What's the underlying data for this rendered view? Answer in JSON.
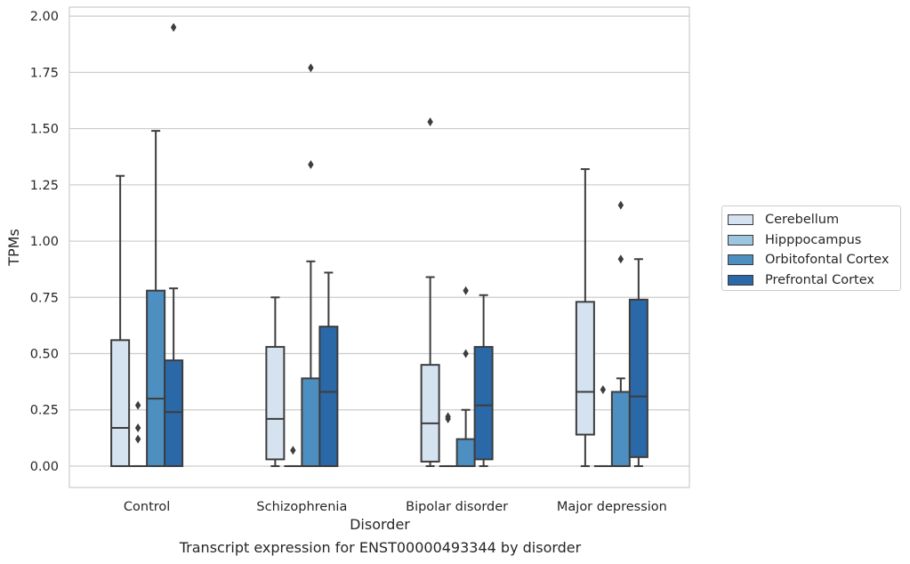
{
  "chart_data": {
    "type": "box",
    "title": "",
    "xlabel": "Disorder",
    "ylabel": "TPMs",
    "ylim": [
      -0.095,
      2.04
    ],
    "yticks": [
      0.0,
      0.25,
      0.5,
      0.75,
      1.0,
      1.25,
      1.5,
      1.75,
      2.0
    ],
    "ytick_labels": [
      "0.00",
      "0.25",
      "0.50",
      "0.75",
      "1.00",
      "1.25",
      "1.50",
      "1.75",
      "2.00"
    ],
    "grid": "horizontal",
    "legend_position": "right",
    "categories": [
      "Control",
      "Schizophrenia",
      "Bipolar disorder",
      "Major depression"
    ],
    "series": [
      {
        "name": "Cerebellum",
        "color": "#d5e3f1",
        "boxes": [
          {
            "q1": 0.0,
            "median": 0.17,
            "q3": 0.56,
            "whisker_low": 0.0,
            "whisker_high": 1.29,
            "outliers": []
          },
          {
            "q1": 0.03,
            "median": 0.21,
            "q3": 0.53,
            "whisker_low": 0.0,
            "whisker_high": 0.75,
            "outliers": []
          },
          {
            "q1": 0.02,
            "median": 0.19,
            "q3": 0.45,
            "whisker_low": 0.0,
            "whisker_high": 0.84,
            "outliers": [
              1.53
            ]
          },
          {
            "q1": 0.14,
            "median": 0.33,
            "q3": 0.73,
            "whisker_low": 0.0,
            "whisker_high": 1.32,
            "outliers": []
          }
        ]
      },
      {
        "name": "Hipppocampus",
        "color": "#9cc5e0",
        "boxes": [
          {
            "q1": 0.0,
            "median": 0.0,
            "q3": 0.0,
            "whisker_low": 0.0,
            "whisker_high": 0.0,
            "outliers": [
              0.12,
              0.17,
              0.27
            ]
          },
          {
            "q1": 0.0,
            "median": 0.0,
            "q3": 0.0,
            "whisker_low": 0.0,
            "whisker_high": 0.0,
            "outliers": [
              0.07
            ]
          },
          {
            "q1": 0.0,
            "median": 0.0,
            "q3": 0.0,
            "whisker_low": 0.0,
            "whisker_high": 0.0,
            "outliers": [
              0.21,
              0.22
            ]
          },
          {
            "q1": 0.0,
            "median": 0.0,
            "q3": 0.0,
            "whisker_low": 0.0,
            "whisker_high": 0.0,
            "outliers": [
              0.34
            ]
          }
        ]
      },
      {
        "name": "Orbitofontal Cortex",
        "color": "#4c8fc0",
        "boxes": [
          {
            "q1": 0.0,
            "median": 0.3,
            "q3": 0.78,
            "whisker_low": 0.0,
            "whisker_high": 1.49,
            "outliers": []
          },
          {
            "q1": 0.0,
            "median": 0.0,
            "q3": 0.39,
            "whisker_low": 0.0,
            "whisker_high": 0.91,
            "outliers": [
              1.34,
              1.77
            ]
          },
          {
            "q1": 0.0,
            "median": 0.0,
            "q3": 0.12,
            "whisker_low": 0.0,
            "whisker_high": 0.25,
            "outliers": [
              0.5,
              0.78
            ]
          },
          {
            "q1": 0.0,
            "median": 0.0,
            "q3": 0.33,
            "whisker_low": 0.0,
            "whisker_high": 0.39,
            "outliers": [
              0.92,
              1.16
            ]
          }
        ]
      },
      {
        "name": "Prefrontal Cortex",
        "color": "#2a68a8",
        "boxes": [
          {
            "q1": 0.0,
            "median": 0.24,
            "q3": 0.47,
            "whisker_low": 0.0,
            "whisker_high": 0.79,
            "outliers": [
              1.95
            ]
          },
          {
            "q1": 0.0,
            "median": 0.33,
            "q3": 0.62,
            "whisker_low": 0.0,
            "whisker_high": 0.86,
            "outliers": []
          },
          {
            "q1": 0.03,
            "median": 0.27,
            "q3": 0.53,
            "whisker_low": 0.0,
            "whisker_high": 0.76,
            "outliers": []
          },
          {
            "q1": 0.04,
            "median": 0.31,
            "q3": 0.74,
            "whisker_low": 0.0,
            "whisker_high": 0.92,
            "outliers": []
          }
        ]
      }
    ]
  },
  "caption": "Transcript expression for ENST00000493344 by disorder"
}
